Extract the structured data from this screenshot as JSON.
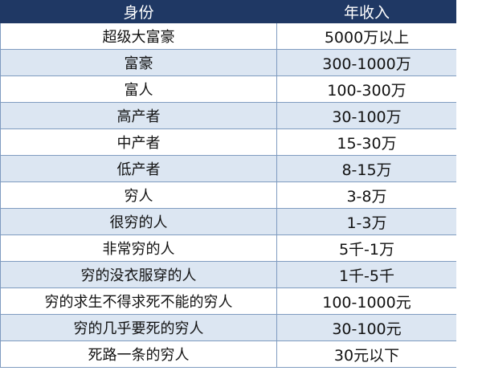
{
  "table": {
    "headers": {
      "identity": "身份",
      "income": "年收入"
    },
    "rows": [
      {
        "identity": "超级大富豪",
        "income": "5000万以上"
      },
      {
        "identity": "富豪",
        "income": "300-1000万"
      },
      {
        "identity": "富人",
        "income": "100-300万"
      },
      {
        "identity": "高产者",
        "income": "30-100万"
      },
      {
        "identity": "中产者",
        "income": "15-30万"
      },
      {
        "identity": "低产者",
        "income": "8-15万"
      },
      {
        "identity": "穷人",
        "income": "3-8万"
      },
      {
        "identity": "很穷的人",
        "income": "1-3万"
      },
      {
        "identity": "非常穷的人",
        "income": "5千-1万"
      },
      {
        "identity": "穷的没衣服穿的人",
        "income": "1千-5千"
      },
      {
        "identity": "穷的求生不得求死不能的穷人",
        "income": "100-1000元"
      },
      {
        "identity": "穷的几乎要死的穷人",
        "income": "30-100元"
      },
      {
        "identity": "死路一条的穷人",
        "income": "30元以下"
      }
    ]
  },
  "colors": {
    "header_bg": "#1f3864",
    "band_bg": "#dce6f2",
    "border": "#7f9bc0"
  }
}
